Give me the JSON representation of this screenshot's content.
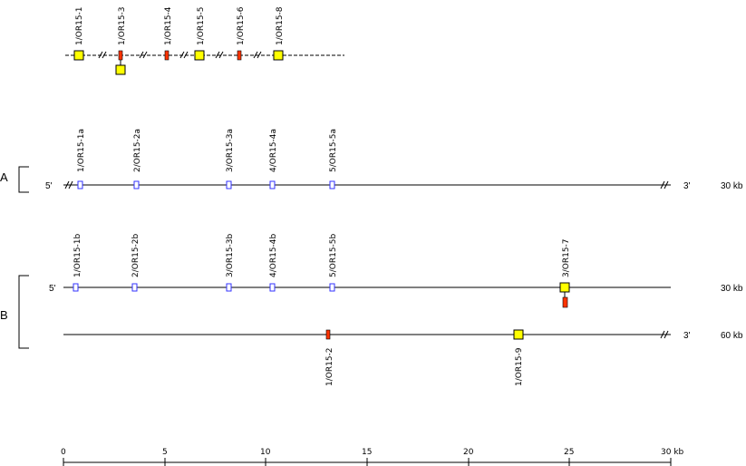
{
  "top_track": {
    "above_labels": [
      "1/OR15-1",
      "1/OR15-3",
      "1/OR15-4",
      "1/OR15-5",
      "1/OR15-6",
      "1/OR15-8"
    ]
  },
  "panel_a": {
    "side_label": "A",
    "five_prime": "5'",
    "three_prime": "3'",
    "length": "30 kb",
    "genes": [
      "1/OR15-1a",
      "2/OR15-2a",
      "3/OR15-3a",
      "4/OR15-4a",
      "5/OR15-5a"
    ]
  },
  "panel_b": {
    "side_label": "B",
    "row1": {
      "five_prime": "5'",
      "length": "30 kb",
      "genes": [
        "1/OR15-1b",
        "2/OR15-2b",
        "3/OR15-3b",
        "4/OR15-4b",
        "5/OR15-5b",
        "3/OR15-7"
      ]
    },
    "row2": {
      "three_prime": "3'",
      "length": "60 kb",
      "genes": [
        "1/OR15-2",
        "1/OR15-9"
      ]
    }
  },
  "scale_axis": {
    "ticks": [
      "0",
      "5",
      "10",
      "15",
      "20",
      "25",
      "30 kb"
    ]
  },
  "colors": {
    "functional_box": "#ffff00",
    "pseudogene_box": "#ff3300",
    "fragment_box": "#3333ff",
    "line": "#000000"
  }
}
